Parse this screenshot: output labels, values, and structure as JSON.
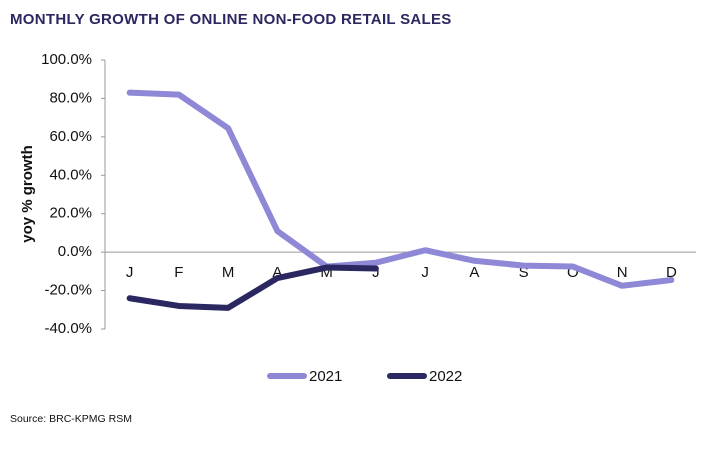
{
  "chart_data": {
    "type": "line",
    "title": "MONTHLY GROWTH OF ONLINE NON-FOOD RETAIL SALES",
    "y_label": "yoy % growth",
    "source": "Source: BRC-KPMG RSM",
    "categories": [
      "J",
      "F",
      "M",
      "A",
      "M",
      "J",
      "J",
      "A",
      "S",
      "O",
      "N",
      "D"
    ],
    "series": [
      {
        "name": "2021",
        "color": "#8e88d6",
        "values": [
          83,
          82,
          64.5,
          11,
          -7.5,
          -5.5,
          1,
          -4.5,
          -7,
          -7.5,
          -17.5,
          -14.5
        ]
      },
      {
        "name": "2022",
        "color": "#2b2760",
        "values": [
          -24,
          -28,
          -29,
          -13.5,
          -8,
          -8.5,
          null,
          null,
          null,
          null,
          null,
          null
        ]
      }
    ],
    "ylim": [
      -40,
      100
    ],
    "yticks": [
      {
        "value": -40,
        "label": "-40.0%"
      },
      {
        "value": -20,
        "label": "-20.0%"
      },
      {
        "value": 0,
        "label": "0.0%"
      },
      {
        "value": 20,
        "label": "20.0%"
      },
      {
        "value": 40,
        "label": "40.0%"
      },
      {
        "value": 60,
        "label": "60.0%"
      },
      {
        "value": 80,
        "label": "80.0%"
      },
      {
        "value": 100,
        "label": "100.0%"
      }
    ],
    "legend": "bottom"
  }
}
